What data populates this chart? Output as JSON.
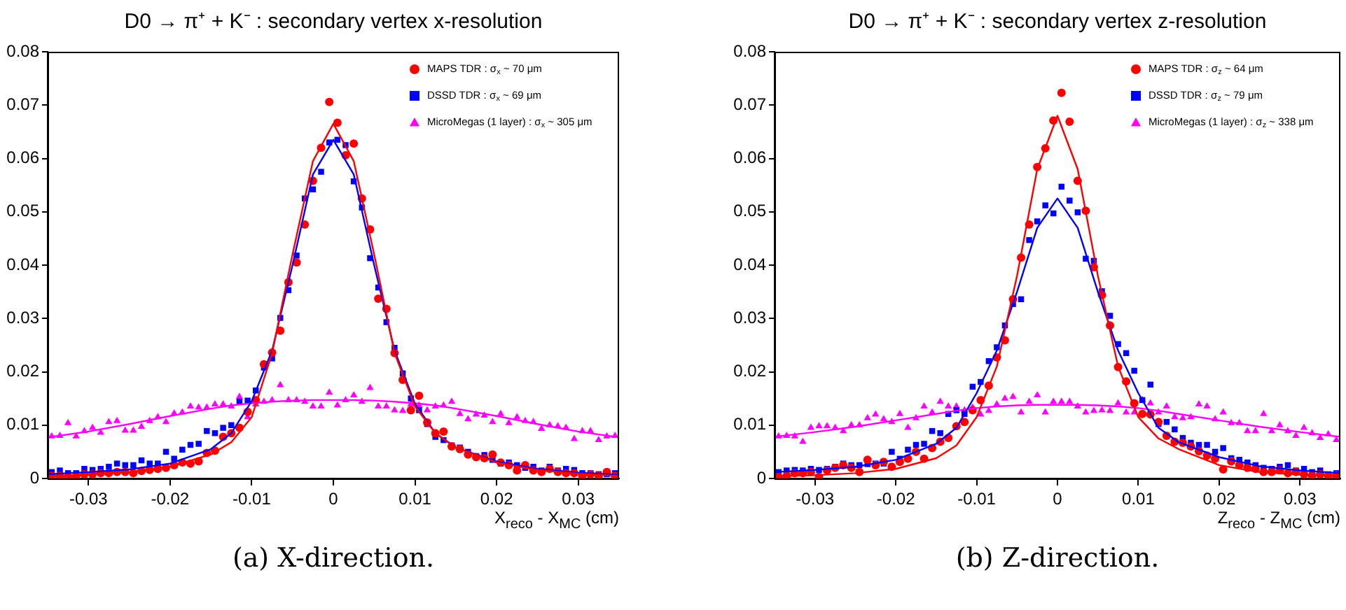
{
  "chart_data": [
    {
      "type": "scatter",
      "title": "D0 → π⁺ + K⁻ : secondary vertex x-resolution",
      "xlabel": "X$_{reco}$ - X$_{MC}$ (cm)",
      "annotations": [
        "(a) X-direction."
      ],
      "x": [
        -0.0345,
        -0.0335,
        -0.0325,
        -0.0315,
        -0.0305,
        -0.0295,
        -0.0285,
        -0.0275,
        -0.0265,
        -0.0255,
        -0.0245,
        -0.0235,
        -0.0225,
        -0.0215,
        -0.0205,
        -0.0195,
        -0.0185,
        -0.0175,
        -0.0165,
        -0.0155,
        -0.0145,
        -0.0135,
        -0.0125,
        -0.0115,
        -0.0105,
        -0.0095,
        -0.0085,
        -0.0075,
        -0.0065,
        -0.0055,
        -0.0045,
        -0.0035,
        -0.0025,
        -0.0015,
        -0.0005,
        0.0005,
        0.0015,
        0.0025,
        0.0035,
        0.0045,
        0.0055,
        0.0065,
        0.0075,
        0.0085,
        0.0095,
        0.0105,
        0.0115,
        0.0125,
        0.0135,
        0.0145,
        0.0155,
        0.0165,
        0.0175,
        0.0185,
        0.0195,
        0.0205,
        0.0215,
        0.0225,
        0.0235,
        0.0245,
        0.0255,
        0.0265,
        0.0275,
        0.0285,
        0.0295,
        0.0305,
        0.0315,
        0.0325,
        0.0335,
        0.0345
      ],
      "series": [
        {
          "name": "MAPS TDR : σ$_{x}$ ~ 70 μm",
          "color": "#ff0000",
          "marker": "circle",
          "values": [
            0.0005,
            0.0005,
            0.0003,
            0.0005,
            0.0008,
            0.0008,
            0.001,
            0.001,
            0.0012,
            0.0012,
            0.001,
            0.0014,
            0.0016,
            0.0018,
            0.002,
            0.0025,
            0.003,
            0.0028,
            0.0032,
            0.0048,
            0.0052,
            0.0078,
            0.0085,
            0.0095,
            0.0125,
            0.0147,
            0.0214,
            0.0236,
            0.0277,
            0.0368,
            0.0405,
            0.0476,
            0.0558,
            0.062,
            0.0706,
            0.0667,
            0.0606,
            0.0628,
            0.0525,
            0.0467,
            0.0337,
            0.0318,
            0.0235,
            0.0185,
            0.0128,
            0.0155,
            0.0105,
            0.0085,
            0.0088,
            0.006,
            0.0055,
            0.0045,
            0.004,
            0.0038,
            0.0045,
            0.003,
            0.0025,
            0.0015,
            0.0025,
            0.0015,
            0.0012,
            0.0018,
            0.0012,
            0.001,
            0.001,
            0.0005,
            0.0008,
            0.0005,
            0.0012,
            0.0005
          ]
        },
        {
          "name": "DSSD TDR : σ$_{x}$ ~ 69 μm",
          "color": "#0000ff",
          "marker": "square",
          "values": [
            0.0012,
            0.0015,
            0.001,
            0.001,
            0.0018,
            0.0016,
            0.0018,
            0.0022,
            0.0028,
            0.0025,
            0.0025,
            0.0034,
            0.0028,
            0.0028,
            0.005,
            0.0037,
            0.0054,
            0.0063,
            0.0065,
            0.0089,
            0.0085,
            0.0095,
            0.01,
            0.0144,
            0.0146,
            0.0165,
            0.0208,
            0.0225,
            0.0301,
            0.0353,
            0.0418,
            0.0525,
            0.0542,
            0.0575,
            0.063,
            0.0635,
            0.0625,
            0.0557,
            0.0508,
            0.0413,
            0.0358,
            0.0293,
            0.0245,
            0.0197,
            0.015,
            0.0128,
            0.0102,
            0.0078,
            0.0072,
            0.0062,
            0.0058,
            0.005,
            0.0042,
            0.0044,
            0.0035,
            0.0028,
            0.003,
            0.0025,
            0.002,
            0.0022,
            0.0015,
            0.0022,
            0.0015,
            0.0018,
            0.0016,
            0.001,
            0.001,
            0.0008,
            0.0008,
            0.001
          ]
        },
        {
          "name": "MicroMegas (1 layer) : σ$_{x}$ ~ 305 μm",
          "color": "#ff00ff",
          "marker": "triangle",
          "values": [
            0.0079,
            0.008,
            0.0104,
            0.0079,
            0.0089,
            0.0095,
            0.0086,
            0.0106,
            0.0108,
            0.009,
            0.009,
            0.0097,
            0.0108,
            0.0115,
            0.0106,
            0.0122,
            0.0124,
            0.0135,
            0.0133,
            0.0133,
            0.0139,
            0.0139,
            0.0135,
            0.0153,
            0.0115,
            0.0139,
            0.0144,
            0.0147,
            0.0175,
            0.0147,
            0.0147,
            0.0144,
            0.0135,
            0.0135,
            0.0161,
            0.0137,
            0.0147,
            0.0156,
            0.0144,
            0.017,
            0.0135,
            0.0135,
            0.0128,
            0.0127,
            0.0139,
            0.0137,
            0.0128,
            0.0135,
            0.0137,
            0.0144,
            0.0121,
            0.0111,
            0.012,
            0.0118,
            0.0106,
            0.0121,
            0.0104,
            0.0115,
            0.0108,
            0.0106,
            0.0093,
            0.01,
            0.0098,
            0.0095,
            0.0074,
            0.0089,
            0.0089,
            0.0072,
            0.0079,
            0.008
          ]
        },
        {
          "type": "line",
          "color": "#ff0000",
          "x": [
            -0.035,
            -0.03,
            -0.025,
            -0.02,
            -0.015,
            -0.0125,
            -0.01,
            -0.0075,
            -0.005,
            -0.0025,
            0,
            0.0025,
            0.005,
            0.0075,
            0.01,
            0.0125,
            0.015,
            0.02,
            0.025,
            0.03,
            0.035
          ],
          "values": [
            0.0004,
            0.0007,
            0.0012,
            0.0022,
            0.0045,
            0.0068,
            0.0115,
            0.0235,
            0.042,
            0.0595,
            0.0665,
            0.0595,
            0.042,
            0.0235,
            0.0135,
            0.0085,
            0.0058,
            0.003,
            0.0016,
            0.0009,
            0.0005
          ]
        },
        {
          "type": "line",
          "color": "#0000ff",
          "x": [
            -0.035,
            -0.03,
            -0.025,
            -0.02,
            -0.015,
            -0.0125,
            -0.01,
            -0.0075,
            -0.005,
            -0.0025,
            0,
            0.0025,
            0.005,
            0.0075,
            0.01,
            0.0125,
            0.015,
            0.02,
            0.025,
            0.03,
            0.035
          ],
          "values": [
            0.0008,
            0.0012,
            0.0017,
            0.0028,
            0.0055,
            0.0085,
            0.0145,
            0.024,
            0.04,
            0.057,
            0.0635,
            0.057,
            0.04,
            0.024,
            0.014,
            0.0085,
            0.0058,
            0.0032,
            0.0018,
            0.0011,
            0.0007
          ]
        },
        {
          "type": "line",
          "color": "#ff00ff",
          "x": [
            -0.035,
            -0.03,
            -0.025,
            -0.02,
            -0.015,
            -0.0125,
            -0.01,
            -0.0075,
            -0.005,
            -0.0025,
            0,
            0.0025,
            0.005,
            0.0075,
            0.01,
            0.0125,
            0.015,
            0.02,
            0.025,
            0.03,
            0.035
          ],
          "values": [
            0.0077,
            0.0088,
            0.0102,
            0.0117,
            0.0131,
            0.0137,
            0.0141,
            0.0144,
            0.0146,
            0.0147,
            0.0147,
            0.0147,
            0.0146,
            0.0144,
            0.0141,
            0.0137,
            0.0131,
            0.0117,
            0.0102,
            0.0088,
            0.0077
          ]
        }
      ],
      "xlim": [
        -0.035,
        0.035
      ],
      "xticks": [
        -0.03,
        -0.02,
        -0.01,
        0,
        0.01,
        0.02,
        0.03
      ],
      "ylim": [
        0,
        0.08
      ],
      "yticks": [
        0,
        0.01,
        0.02,
        0.03,
        0.04,
        0.05,
        0.06,
        0.07,
        0.08
      ],
      "legend": "top right"
    },
    {
      "type": "scatter",
      "title": "D0 → π⁺ + K⁻ : secondary vertex z-resolution",
      "xlabel": "Z$_{reco}$ - Z$_{MC}$ (cm)",
      "annotations": [
        "(b) Z-direction."
      ],
      "x": [
        -0.0345,
        -0.0335,
        -0.0325,
        -0.0315,
        -0.0305,
        -0.0295,
        -0.0285,
        -0.0275,
        -0.0265,
        -0.0255,
        -0.0245,
        -0.0235,
        -0.0225,
        -0.0215,
        -0.0205,
        -0.0195,
        -0.0185,
        -0.0175,
        -0.0165,
        -0.0155,
        -0.0145,
        -0.0135,
        -0.0125,
        -0.0115,
        -0.0105,
        -0.0095,
        -0.0085,
        -0.0075,
        -0.0065,
        -0.0055,
        -0.0045,
        -0.0035,
        -0.0025,
        -0.0015,
        -0.0005,
        0.0005,
        0.0015,
        0.0025,
        0.0035,
        0.0045,
        0.0055,
        0.0065,
        0.0075,
        0.0085,
        0.0095,
        0.0105,
        0.0115,
        0.0125,
        0.0135,
        0.0145,
        0.0155,
        0.0165,
        0.0175,
        0.0185,
        0.0195,
        0.0205,
        0.0215,
        0.0225,
        0.0235,
        0.0245,
        0.0255,
        0.0265,
        0.0275,
        0.0285,
        0.0295,
        0.0305,
        0.0315,
        0.0325,
        0.0335,
        0.0345
      ],
      "series": [
        {
          "name": "MAPS TDR : σ$_{z}$ ~ 64 μm",
          "color": "#ff0000",
          "marker": "circle",
          "values": [
            0.0003,
            0.0005,
            0.001,
            0.001,
            0.0012,
            0.0003,
            0.0015,
            0.002,
            0.0025,
            0.002,
            0.0012,
            0.0035,
            0.0025,
            0.0031,
            0.0022,
            0.0031,
            0.0037,
            0.005,
            0.0037,
            0.0057,
            0.0069,
            0.0076,
            0.0098,
            0.0106,
            0.0128,
            0.0147,
            0.0174,
            0.0227,
            0.0259,
            0.0336,
            0.0414,
            0.0476,
            0.0584,
            0.0619,
            0.0671,
            0.0723,
            0.0669,
            0.0558,
            0.0502,
            0.0396,
            0.0344,
            0.0287,
            0.0209,
            0.0182,
            0.0141,
            0.0121,
            0.012,
            0.0106,
            0.008,
            0.0069,
            0.0067,
            0.006,
            0.0051,
            0.0043,
            0.0037,
            0.0017,
            0.0032,
            0.0025,
            0.002,
            0.0018,
            0.0012,
            0.0012,
            0.0015,
            0.001,
            0.0012,
            0.0008,
            0.0005,
            0.0008,
            0.0005,
            0.0006
          ]
        },
        {
          "name": "DSSD TDR : σ$_{z}$ ~ 79 μm",
          "color": "#0000ff",
          "marker": "square",
          "values": [
            0.0012,
            0.0015,
            0.0016,
            0.0015,
            0.0018,
            0.0016,
            0.0018,
            0.0022,
            0.0028,
            0.0025,
            0.0025,
            0.0027,
            0.0028,
            0.0028,
            0.005,
            0.0037,
            0.0054,
            0.0063,
            0.0065,
            0.0089,
            0.0085,
            0.0121,
            0.0128,
            0.0121,
            0.0172,
            0.0181,
            0.022,
            0.0246,
            0.0287,
            0.0327,
            0.0336,
            0.0447,
            0.0482,
            0.0512,
            0.0497,
            0.0547,
            0.0521,
            0.0499,
            0.0412,
            0.0408,
            0.0351,
            0.0305,
            0.0252,
            0.0235,
            0.0202,
            0.0147,
            0.0176,
            0.0102,
            0.0106,
            0.0092,
            0.0076,
            0.0067,
            0.0063,
            0.0063,
            0.005,
            0.0057,
            0.0038,
            0.0035,
            0.003,
            0.0025,
            0.002,
            0.0018,
            0.0022,
            0.0025,
            0.0015,
            0.0018,
            0.0012,
            0.0015,
            0.0008,
            0.001
          ]
        },
        {
          "name": "MicroMegas (1 layer) : σ$_{z}$ ~ 338 μm",
          "color": "#ff00ff",
          "marker": "triangle",
          "values": [
            0.0079,
            0.008,
            0.0079,
            0.0069,
            0.0095,
            0.0098,
            0.0098,
            0.0095,
            0.0089,
            0.01,
            0.01,
            0.0113,
            0.012,
            0.0111,
            0.0106,
            0.0121,
            0.0095,
            0.0113,
            0.0135,
            0.0124,
            0.0144,
            0.0135,
            0.0135,
            0.0128,
            0.0133,
            0.012,
            0.0127,
            0.0139,
            0.015,
            0.0153,
            0.0124,
            0.0144,
            0.0156,
            0.0124,
            0.0144,
            0.0144,
            0.0144,
            0.0135,
            0.0124,
            0.0127,
            0.0128,
            0.0127,
            0.0141,
            0.0124,
            0.0124,
            0.0147,
            0.0141,
            0.0124,
            0.0135,
            0.0115,
            0.0113,
            0.0115,
            0.0139,
            0.0135,
            0.0111,
            0.0124,
            0.0104,
            0.0104,
            0.0089,
            0.0089,
            0.0121,
            0.0089,
            0.01,
            0.0089,
            0.008,
            0.0095,
            0.0085,
            0.0076,
            0.0083,
            0.0072
          ]
        },
        {
          "type": "line",
          "color": "#ff0000",
          "x": [
            -0.035,
            -0.03,
            -0.025,
            -0.02,
            -0.015,
            -0.0125,
            -0.01,
            -0.0075,
            -0.005,
            -0.0025,
            0,
            0.0025,
            0.005,
            0.0075,
            0.01,
            0.0125,
            0.015,
            0.02,
            0.025,
            0.03,
            0.035
          ],
          "values": [
            0.0004,
            0.0006,
            0.001,
            0.0018,
            0.0038,
            0.0062,
            0.0115,
            0.021,
            0.038,
            0.058,
            0.068,
            0.058,
            0.038,
            0.021,
            0.0115,
            0.0075,
            0.0055,
            0.0025,
            0.0012,
            0.0007,
            0.0004
          ]
        },
        {
          "type": "line",
          "color": "#0000ff",
          "x": [
            -0.035,
            -0.03,
            -0.025,
            -0.02,
            -0.015,
            -0.0125,
            -0.01,
            -0.0075,
            -0.005,
            -0.0025,
            0,
            0.0025,
            0.005,
            0.0075,
            0.01,
            0.0125,
            0.015,
            0.02,
            0.025,
            0.03,
            0.035
          ],
          "values": [
            0.0012,
            0.0016,
            0.0022,
            0.0035,
            0.0065,
            0.0095,
            0.016,
            0.024,
            0.035,
            0.047,
            0.0525,
            0.047,
            0.035,
            0.024,
            0.016,
            0.0095,
            0.0068,
            0.004,
            0.0023,
            0.0015,
            0.001
          ]
        },
        {
          "type": "line",
          "color": "#ff00ff",
          "x": [
            -0.035,
            -0.03,
            -0.025,
            -0.02,
            -0.015,
            -0.0125,
            -0.01,
            -0.0075,
            -0.005,
            -0.0025,
            0,
            0.0025,
            0.005,
            0.0075,
            0.01,
            0.0125,
            0.015,
            0.02,
            0.025,
            0.03,
            0.035
          ],
          "values": [
            0.0078,
            0.0087,
            0.0097,
            0.0109,
            0.0121,
            0.0127,
            0.0132,
            0.0135,
            0.0137,
            0.0138,
            0.0138,
            0.0138,
            0.0137,
            0.0135,
            0.0132,
            0.0127,
            0.0121,
            0.0109,
            0.0097,
            0.0087,
            0.0078
          ]
        }
      ],
      "xlim": [
        -0.035,
        0.035
      ],
      "xticks": [
        -0.03,
        -0.02,
        -0.01,
        0,
        0.01,
        0.02,
        0.03
      ],
      "ylim": [
        0,
        0.08
      ],
      "yticks": [
        0,
        0.01,
        0.02,
        0.03,
        0.04,
        0.05,
        0.06,
        0.07,
        0.08
      ],
      "legend": "top right"
    }
  ]
}
